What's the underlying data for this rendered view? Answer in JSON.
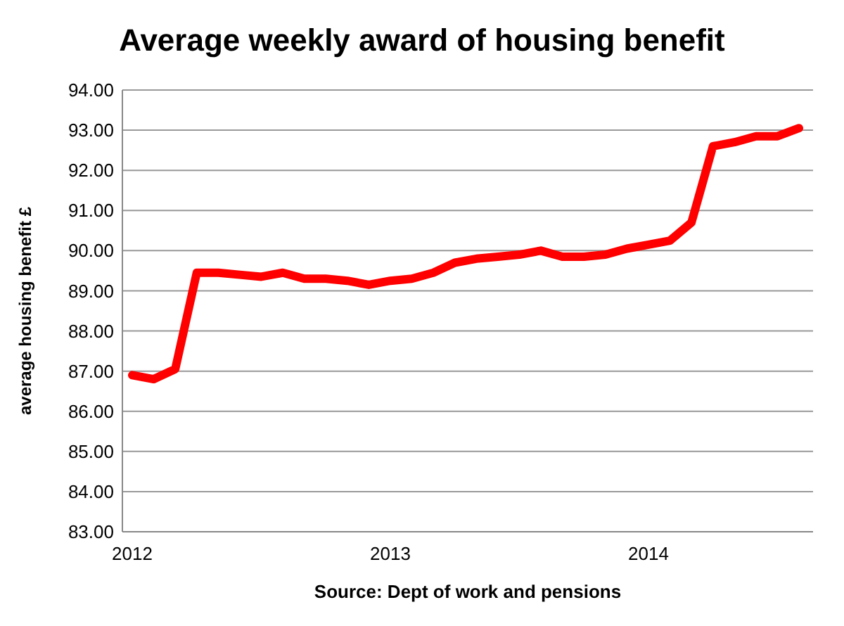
{
  "chart_data": {
    "type": "line",
    "title": "Average weekly award of housing benefit",
    "ylabel": "average housing benefit £",
    "annotations": [
      "Source: Dept of work and pensions"
    ],
    "categories": [
      "2012",
      null,
      null,
      null,
      null,
      null,
      null,
      null,
      null,
      null,
      null,
      null,
      "2013",
      null,
      null,
      null,
      null,
      null,
      null,
      null,
      null,
      null,
      null,
      null,
      "2014",
      null,
      null,
      null,
      null,
      null,
      null,
      null
    ],
    "series": [
      {
        "color": "#ff0000",
        "values": [
          86.9,
          86.8,
          87.05,
          89.45,
          89.45,
          89.4,
          89.35,
          89.45,
          89.3,
          89.3,
          89.25,
          89.15,
          89.25,
          89.3,
          89.45,
          89.7,
          89.8,
          89.85,
          89.9,
          90.0,
          89.85,
          89.85,
          89.9,
          90.05,
          90.15,
          90.25,
          90.7,
          92.6,
          92.7,
          92.85,
          92.85,
          93.05
        ]
      }
    ],
    "ylim": [
      83,
      94
    ],
    "yticks": [
      {
        "value": 83,
        "label": "83.00"
      },
      {
        "value": 84,
        "label": "84.00"
      },
      {
        "value": 85,
        "label": "85.00"
      },
      {
        "value": 86,
        "label": "86.00"
      },
      {
        "value": 87,
        "label": "87.00"
      },
      {
        "value": 88,
        "label": "88.00"
      },
      {
        "value": 89,
        "label": "89.00"
      },
      {
        "value": 90,
        "label": "90.00"
      },
      {
        "value": 91,
        "label": "91.00"
      },
      {
        "value": 92,
        "label": "92.00"
      },
      {
        "value": 93,
        "label": "93.00"
      },
      {
        "value": 94,
        "label": "94.00"
      }
    ],
    "grid": "y",
    "marker": "none",
    "line_style": "solid"
  }
}
